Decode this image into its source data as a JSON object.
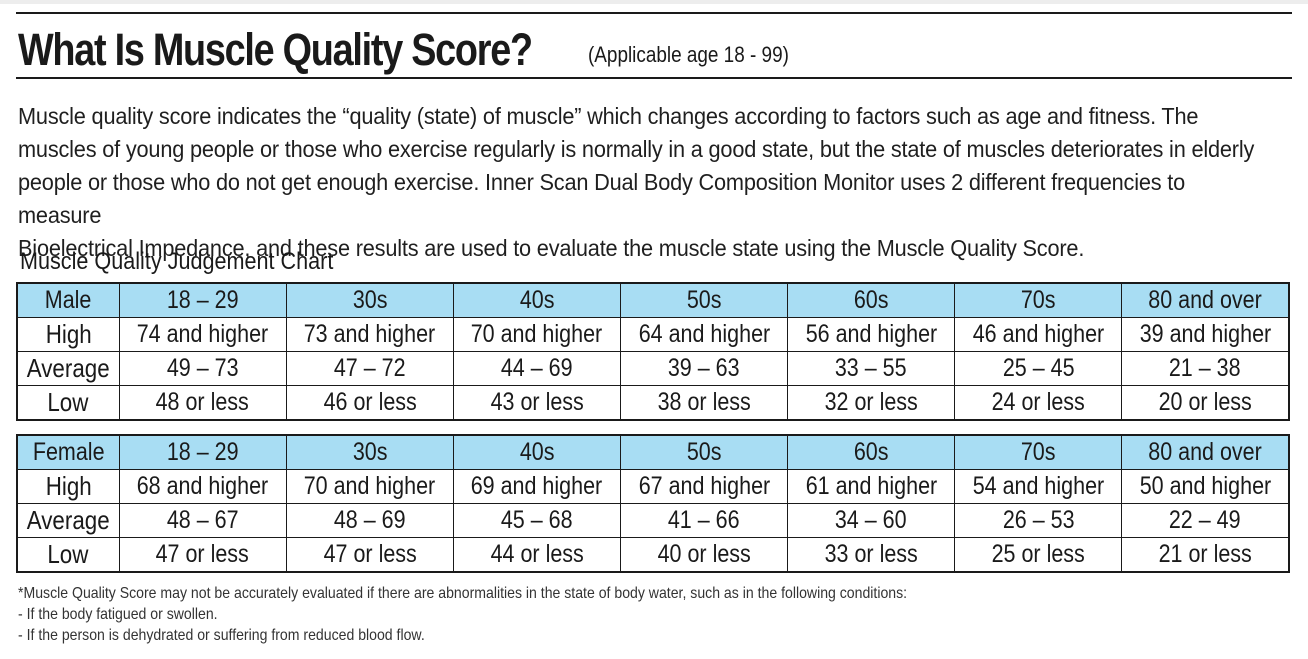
{
  "header": {
    "title": "What Is Muscle Quality Score?",
    "subtitle": "(Applicable age 18 - 99)"
  },
  "intro": {
    "line1": "Muscle quality score indicates the “quality (state) of muscle” which changes according to factors such as age and fitness. The",
    "line2": "muscles of young people or those who exercise regularly is normally in a good state, but the state of muscles deteriorates in elderly",
    "line3": "people or those who do not get enough exercise. Inner Scan Dual Body Composition Monitor uses 2 different frequencies to measure",
    "line4": "Bioelectrical Impedance, and these results are used to evaluate the muscle state using the Muscle Quality Score."
  },
  "chart_title": "Muscle Quality Judgement Chart",
  "male": {
    "label": "Male",
    "ages": [
      "18 – 29",
      "30s",
      "40s",
      "50s",
      "60s",
      "70s",
      "80 and over"
    ],
    "rows": [
      {
        "label": "High",
        "values": [
          "74 and higher",
          "73 and higher",
          "70 and higher",
          "64 and higher",
          "56 and higher",
          "46 and higher",
          "39 and higher"
        ]
      },
      {
        "label": "Average",
        "values": [
          "49 – 73",
          "47 – 72",
          "44 – 69",
          "39 – 63",
          "33 – 55",
          "25 – 45",
          "21 – 38"
        ]
      },
      {
        "label": "Low",
        "values": [
          "48 or less",
          "46 or less",
          "43 or less",
          "38 or less",
          "32 or less",
          "24 or less",
          "20 or less"
        ]
      }
    ]
  },
  "female": {
    "label": "Female",
    "ages": [
      "18 – 29",
      "30s",
      "40s",
      "50s",
      "60s",
      "70s",
      "80 and over"
    ],
    "rows": [
      {
        "label": "High",
        "values": [
          "68 and higher",
          "70 and higher",
          "69 and higher",
          "67 and higher",
          "61 and higher",
          "54 and higher",
          "50 and higher"
        ]
      },
      {
        "label": "Average",
        "values": [
          "48 – 67",
          "48 – 69",
          "45 – 68",
          "41 – 66",
          "34 – 60",
          "26 – 53",
          "22 – 49"
        ]
      },
      {
        "label": "Low",
        "values": [
          "47 or less",
          "47 or less",
          "44 or less",
          "40 or less",
          "33 or less",
          "25 or less",
          "21 or less"
        ]
      }
    ]
  },
  "footnote": {
    "line1": "*Muscle Quality Score may not be accurately evaluated if there are abnormalities in the state of body water, such as in the following conditions:",
    "line2": "- If the body fatigued or swollen.",
    "line3": "- If the person is dehydrated or suffering from reduced blood flow."
  },
  "colors": {
    "header_fill": "#a8ddf3",
    "rule": "#1a1a1a"
  }
}
